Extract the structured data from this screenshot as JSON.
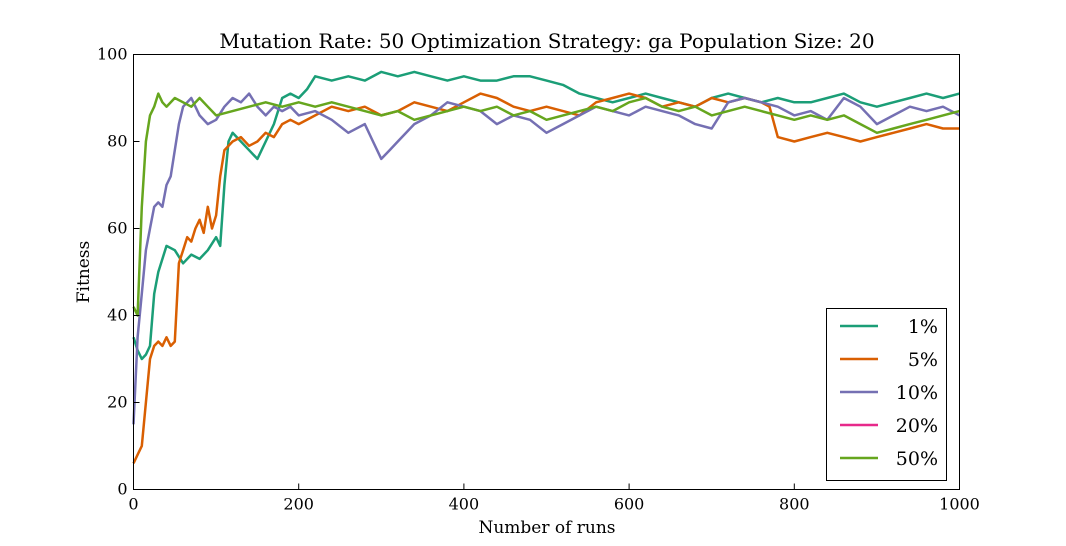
{
  "chart_data": {
    "type": "line",
    "title": "Mutation Rate: 50 Optimization Strategy: ga Population Size: 20",
    "xlabel": "Number of runs",
    "ylabel": "Fitness",
    "xlim": [
      0,
      1000
    ],
    "ylim": [
      0,
      100
    ],
    "xticks": [
      0,
      200,
      400,
      600,
      800,
      1000
    ],
    "yticks": [
      0,
      20,
      40,
      60,
      80,
      100
    ],
    "grid": false,
    "legend_position": "bottom-right",
    "series": [
      {
        "name": "1%",
        "color": "#1b9e77",
        "x": [
          0,
          5,
          10,
          15,
          20,
          25,
          30,
          40,
          50,
          60,
          70,
          80,
          90,
          100,
          105,
          110,
          115,
          120,
          130,
          140,
          150,
          160,
          170,
          180,
          190,
          200,
          210,
          220,
          240,
          260,
          280,
          300,
          320,
          340,
          360,
          380,
          400,
          420,
          440,
          460,
          480,
          500,
          520,
          540,
          560,
          580,
          600,
          620,
          640,
          660,
          680,
          700,
          720,
          740,
          760,
          780,
          800,
          820,
          840,
          860,
          880,
          900,
          920,
          940,
          960,
          980,
          1000
        ],
        "y": [
          35,
          32,
          30,
          31,
          33,
          45,
          50,
          56,
          55,
          52,
          54,
          53,
          55,
          58,
          56,
          70,
          80,
          82,
          80,
          78,
          76,
          80,
          84,
          90,
          91,
          90,
          92,
          95,
          94,
          95,
          94,
          96,
          95,
          96,
          95,
          94,
          95,
          94,
          94,
          95,
          95,
          94,
          93,
          91,
          90,
          89,
          90,
          91,
          90,
          89,
          88,
          90,
          91,
          90,
          89,
          90,
          89,
          89,
          90,
          91,
          89,
          88,
          89,
          90,
          91,
          90,
          91
        ]
      },
      {
        "name": "5%",
        "color": "#d95f02",
        "x": [
          0,
          5,
          10,
          15,
          20,
          25,
          30,
          35,
          40,
          45,
          50,
          55,
          60,
          65,
          70,
          75,
          80,
          85,
          90,
          95,
          100,
          105,
          110,
          120,
          130,
          140,
          150,
          160,
          170,
          180,
          190,
          200,
          220,
          240,
          260,
          280,
          300,
          320,
          340,
          360,
          380,
          400,
          420,
          440,
          460,
          480,
          500,
          520,
          540,
          560,
          580,
          600,
          620,
          640,
          660,
          680,
          700,
          720,
          740,
          760,
          770,
          780,
          800,
          820,
          840,
          860,
          880,
          900,
          920,
          940,
          960,
          980,
          1000
        ],
        "y": [
          6,
          8,
          10,
          20,
          30,
          33,
          34,
          33,
          35,
          33,
          34,
          52,
          55,
          58,
          57,
          60,
          62,
          59,
          65,
          60,
          63,
          72,
          78,
          80,
          81,
          79,
          80,
          82,
          81,
          84,
          85,
          84,
          86,
          88,
          87,
          88,
          86,
          87,
          89,
          88,
          87,
          89,
          91,
          90,
          88,
          87,
          88,
          87,
          86,
          89,
          90,
          91,
          90,
          88,
          89,
          88,
          90,
          89,
          90,
          89,
          88,
          81,
          80,
          81,
          82,
          81,
          80,
          81,
          82,
          83,
          84,
          83,
          83
        ]
      },
      {
        "name": "10%",
        "color": "#7570b3",
        "x": [
          0,
          5,
          10,
          15,
          20,
          25,
          30,
          35,
          40,
          45,
          50,
          55,
          60,
          70,
          80,
          90,
          100,
          110,
          120,
          130,
          140,
          150,
          160,
          170,
          180,
          190,
          200,
          220,
          240,
          260,
          280,
          290,
          300,
          310,
          320,
          340,
          360,
          380,
          400,
          420,
          440,
          460,
          480,
          500,
          520,
          540,
          560,
          580,
          600,
          620,
          640,
          660,
          680,
          700,
          720,
          740,
          760,
          780,
          800,
          820,
          840,
          860,
          880,
          900,
          920,
          940,
          960,
          980,
          1000
        ],
        "y": [
          15,
          35,
          45,
          55,
          60,
          65,
          66,
          65,
          70,
          72,
          78,
          84,
          88,
          90,
          86,
          84,
          85,
          88,
          90,
          89,
          91,
          88,
          86,
          88,
          87,
          88,
          86,
          87,
          85,
          82,
          84,
          80,
          76,
          78,
          80,
          84,
          86,
          89,
          88,
          87,
          84,
          86,
          85,
          82,
          84,
          86,
          88,
          87,
          86,
          88,
          87,
          86,
          84,
          83,
          89,
          90,
          89,
          88,
          86,
          87,
          85,
          90,
          88,
          84,
          86,
          88,
          87,
          88,
          86
        ]
      },
      {
        "name": "20%",
        "color": "#e7298a",
        "x": [],
        "y": []
      },
      {
        "name": "50%",
        "color": "#66a61e",
        "x": [
          0,
          5,
          10,
          15,
          20,
          25,
          30,
          35,
          40,
          50,
          60,
          70,
          80,
          90,
          100,
          120,
          140,
          160,
          180,
          200,
          220,
          240,
          260,
          280,
          300,
          320,
          340,
          360,
          380,
          400,
          420,
          440,
          460,
          480,
          500,
          520,
          540,
          560,
          580,
          600,
          620,
          640,
          660,
          680,
          700,
          720,
          740,
          760,
          780,
          800,
          820,
          840,
          860,
          880,
          900,
          920,
          940,
          960,
          980,
          1000
        ],
        "y": [
          42,
          40,
          65,
          80,
          86,
          88,
          91,
          89,
          88,
          90,
          89,
          88,
          90,
          88,
          86,
          87,
          88,
          89,
          88,
          89,
          88,
          89,
          88,
          87,
          86,
          87,
          85,
          86,
          87,
          88,
          87,
          88,
          86,
          87,
          85,
          86,
          87,
          88,
          87,
          89,
          90,
          88,
          87,
          88,
          86,
          87,
          88,
          87,
          86,
          85,
          86,
          85,
          86,
          84,
          82,
          83,
          84,
          85,
          86,
          87
        ]
      }
    ]
  }
}
